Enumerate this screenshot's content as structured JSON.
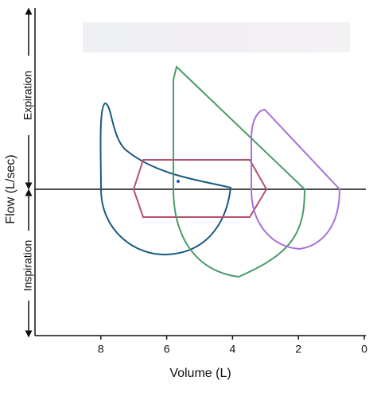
{
  "chart_data": {
    "type": "line",
    "x_label": "Volume (L)",
    "y_label": "Flow (L/sec)",
    "upper_label": "Expiration",
    "lower_label": "Inspiration",
    "xlim": [
      10,
      0
    ],
    "xticks": [
      8,
      6,
      4,
      2,
      0
    ]
  }
}
